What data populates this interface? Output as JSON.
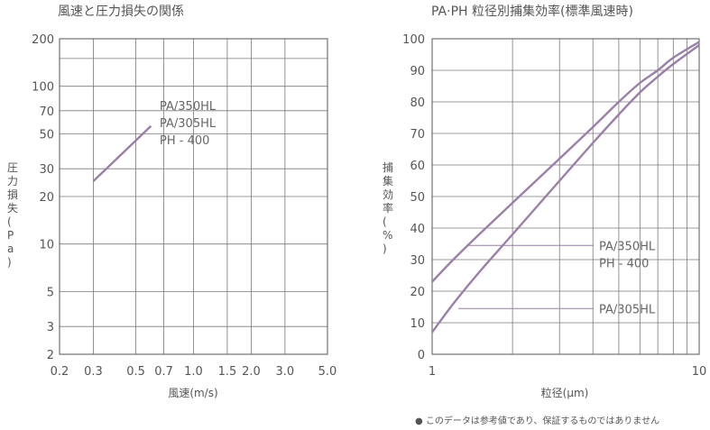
{
  "chart_data": [
    {
      "type": "line",
      "title": "風速と圧力損失の関係",
      "xlabel": "風速(m/s)",
      "ylabel": "圧力損失(Pa)",
      "x_scale": "log",
      "y_scale": "log",
      "xlim": [
        0.2,
        5.0
      ],
      "ylim": [
        2,
        200
      ],
      "x_ticks": [
        "0.2",
        "0.3",
        "0.5",
        "0.7",
        "1.0",
        "1.5",
        "2.0",
        "3.0",
        "5.0"
      ],
      "x_tick_values": [
        0.2,
        0.3,
        0.5,
        0.7,
        1.0,
        1.5,
        2.0,
        3.0,
        5.0
      ],
      "y_ticks": [
        "200",
        "100",
        "70",
        "50",
        "30",
        "20",
        "10",
        "5",
        "3",
        "2"
      ],
      "y_tick_values": [
        200,
        100,
        70,
        50,
        30,
        20,
        10,
        5,
        3,
        2
      ],
      "grid": true,
      "series": [
        {
          "name": "PA/350HL PA/305HL PH - 400",
          "x": [
            0.3,
            0.6
          ],
          "y": [
            25,
            56
          ]
        }
      ],
      "legend_labels": [
        "PA/350HL",
        "PA/305HL",
        "PH - 400"
      ]
    },
    {
      "type": "line",
      "title": "PA·PH 粒径別捕集効率(標準風速時)",
      "xlabel": "粒径(μm)",
      "ylabel": "捕集効率(%)",
      "x_scale": "log",
      "y_scale": "linear",
      "xlim": [
        1,
        10
      ],
      "ylim": [
        0,
        100
      ],
      "x_ticks": [
        "1",
        "10"
      ],
      "y_ticks": [
        "100",
        "90",
        "80",
        "70",
        "60",
        "50",
        "40",
        "30",
        "20",
        "10",
        "0"
      ],
      "grid": true,
      "series": [
        {
          "name": "PA/350HL PH - 400",
          "x": [
            1,
            1.2,
            1.5,
            2,
            3,
            4,
            5,
            6,
            7,
            8,
            10
          ],
          "y": [
            23,
            30,
            38,
            48,
            62,
            72,
            80,
            86,
            90,
            94,
            99
          ]
        },
        {
          "name": "PA/305HL",
          "x": [
            1,
            1.2,
            1.5,
            2,
            3,
            4,
            5,
            6,
            7,
            8,
            10
          ],
          "y": [
            7,
            16,
            26,
            38,
            55,
            67,
            76,
            83,
            88,
            92,
            98
          ]
        }
      ],
      "legend_labels": [
        "PA/350HL",
        "PH - 400",
        "PA/305HL"
      ]
    }
  ],
  "footnote": "● このデータは参考値であり、保証するものではありません"
}
